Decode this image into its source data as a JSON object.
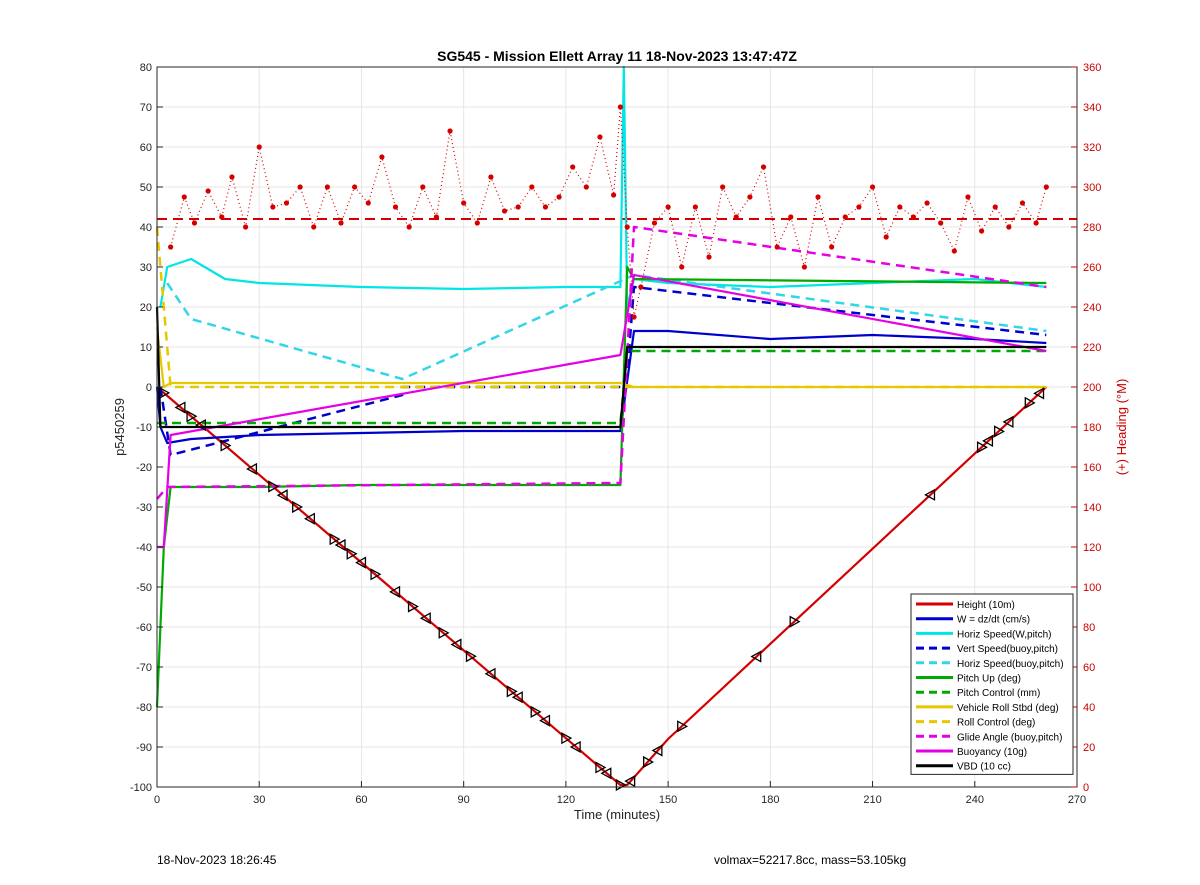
{
  "chart_data": {
    "type": "line",
    "title": "SG545 - Mission Ellett Array 11 18-Nov-2023 13:47:47Z",
    "xlabel": "Time (minutes)",
    "ylabel": "p5450259",
    "y2label": "(+) Heading (°M)",
    "xlim": [
      0,
      270
    ],
    "ylim": [
      -100,
      80
    ],
    "y2lim": [
      0,
      360
    ],
    "xticks": [
      "0",
      "30",
      "60",
      "90",
      "120",
      "150",
      "180",
      "210",
      "240",
      "270"
    ],
    "yticks": [
      "80",
      "70",
      "60",
      "50",
      "40",
      "30",
      "20",
      "10",
      "0",
      "-10",
      "-20",
      "-30",
      "-40",
      "-50",
      "-60",
      "-70",
      "-80",
      "-90",
      "-100"
    ],
    "y2ticks": [
      "360",
      "340",
      "320",
      "300",
      "280",
      "260",
      "240",
      "220",
      "200",
      "180",
      "160",
      "140",
      "120",
      "100",
      "80",
      "60",
      "40",
      "20",
      "0"
    ],
    "grid": true,
    "legend_position": "bottom-right",
    "series": [
      {
        "name": "Height (10m)",
        "color": "#d40000",
        "style": "solid",
        "x": [
          0,
          136,
          138,
          150,
          261
        ],
        "y": [
          0,
          -99.5,
          -99.5,
          -88,
          0
        ]
      },
      {
        "name": "W = dz/dt (cm/s)",
        "color": "#0000cc",
        "style": "solid",
        "x": [
          0,
          1,
          3,
          10,
          30,
          60,
          90,
          120,
          136,
          140,
          150,
          180,
          210,
          240,
          261
        ],
        "y": [
          0,
          -10,
          -14,
          -13,
          -12,
          -11.5,
          -11,
          -11,
          -11,
          14,
          14,
          12,
          13,
          12,
          11
        ]
      },
      {
        "name": "Horiz Speed(W,pitch)",
        "color": "#00e5e5",
        "style": "solid",
        "x": [
          1,
          3,
          10,
          20,
          30,
          60,
          90,
          120,
          136,
          137,
          138,
          140,
          150,
          180,
          210,
          240,
          261
        ],
        "y": [
          20,
          30,
          32,
          27,
          26,
          25,
          24.5,
          25,
          25,
          80,
          20,
          27,
          26,
          25,
          26,
          27,
          25
        ]
      },
      {
        "name": "Vert Speed(buoy,pitch)",
        "color": "#0000cc",
        "style": "dashed",
        "x": [
          1,
          4,
          72,
          72,
          136,
          138,
          140,
          200,
          261
        ],
        "y": [
          0,
          -17,
          -2,
          0,
          0,
          3,
          25,
          19,
          13
        ]
      },
      {
        "name": "Horiz Speed(buoy,pitch)",
        "color": "#33d6e6",
        "style": "dashed",
        "x": [
          3,
          10,
          72,
          140,
          261
        ],
        "y": [
          26,
          17,
          2,
          28,
          14
        ]
      },
      {
        "name": "Pitch Up (deg)",
        "color": "#00aa00",
        "style": "solid",
        "x": [
          0,
          1,
          2,
          4,
          30,
          60,
          90,
          136,
          138,
          140,
          261
        ],
        "y": [
          -80,
          -60,
          -40,
          -25,
          -25,
          -24.5,
          -24.5,
          -24.5,
          30,
          27,
          26
        ]
      },
      {
        "name": "Pitch Control (mm)",
        "color": "#00aa00",
        "style": "dashed",
        "x": [
          0,
          2,
          136,
          138,
          261
        ],
        "y": [
          -9,
          -9,
          -9,
          9,
          9
        ]
      },
      {
        "name": "Vehicle Roll Stbd (deg)",
        "color": "#e6c800",
        "style": "solid",
        "x": [
          0,
          2,
          4,
          136,
          140,
          261
        ],
        "y": [
          15,
          0,
          1,
          1,
          0,
          0
        ]
      },
      {
        "name": "Roll Control (deg)",
        "color": "#e6c800",
        "style": "dashed",
        "x": [
          0,
          4,
          136,
          140,
          261
        ],
        "y": [
          40,
          0,
          0,
          0,
          0
        ]
      },
      {
        "name": "Glide Angle (buoy,pitch)",
        "color": "#e600e6",
        "style": "dashed",
        "x": [
          0,
          3,
          136,
          140,
          261
        ],
        "y": [
          -28,
          -25,
          -24,
          40,
          25
        ]
      },
      {
        "name": "Buoyancy (10g)",
        "color": "#e600e6",
        "style": "solid",
        "x": [
          0,
          2,
          4,
          136,
          140,
          261
        ],
        "y": [
          -40,
          -40,
          -12,
          8,
          28,
          9
        ]
      },
      {
        "name": "VBD (10 cc)",
        "color": "#000000",
        "style": "solid",
        "x": [
          0,
          1,
          136,
          138,
          261
        ],
        "y": [
          20,
          -10,
          -10,
          10,
          10
        ]
      }
    ],
    "heading": {
      "name": "Heading (°M)",
      "color": "#d40000",
      "axis": "right",
      "mean": 284,
      "x": [
        4,
        8,
        11,
        15,
        19,
        22,
        26,
        30,
        34,
        38,
        42,
        46,
        50,
        54,
        58,
        62,
        66,
        70,
        74,
        78,
        82,
        86,
        90,
        94,
        98,
        102,
        106,
        110,
        114,
        118,
        122,
        126,
        130,
        134,
        136,
        138,
        140,
        142,
        146,
        150,
        154,
        158,
        162,
        166,
        170,
        174,
        178,
        182,
        186,
        190,
        194,
        198,
        202,
        206,
        210,
        214,
        218,
        222,
        226,
        230,
        234,
        238,
        242,
        246,
        250,
        254,
        258,
        261
      ],
      "y": [
        270,
        295,
        282,
        298,
        285,
        305,
        280,
        320,
        290,
        292,
        300,
        280,
        300,
        282,
        300,
        292,
        315,
        290,
        280,
        300,
        285,
        328,
        292,
        282,
        305,
        288,
        290,
        300,
        290,
        295,
        310,
        300,
        325,
        296,
        340,
        280,
        235,
        250,
        282,
        290,
        260,
        290,
        265,
        300,
        285,
        295,
        310,
        270,
        285,
        260,
        295,
        270,
        285,
        290,
        300,
        275,
        290,
        285,
        292,
        282,
        268,
        295,
        278,
        290,
        280,
        292,
        282,
        300
      ]
    },
    "markers": {
      "color": "#000000",
      "shape": "triangle",
      "x": [
        2,
        7,
        10,
        13,
        20,
        28,
        34,
        37,
        41,
        45,
        52,
        54,
        57,
        60,
        64,
        70,
        75,
        79,
        84,
        88,
        92,
        98,
        104,
        106,
        111,
        114,
        120,
        123,
        130,
        132,
        136,
        139,
        144,
        147,
        154,
        176,
        187,
        227,
        242,
        244,
        247,
        250,
        256,
        259
      ]
    }
  },
  "footer": {
    "timestamp": "18-Nov-2023 18:26:45",
    "info": "volmax=52217.8cc, mass=53.105kg"
  }
}
